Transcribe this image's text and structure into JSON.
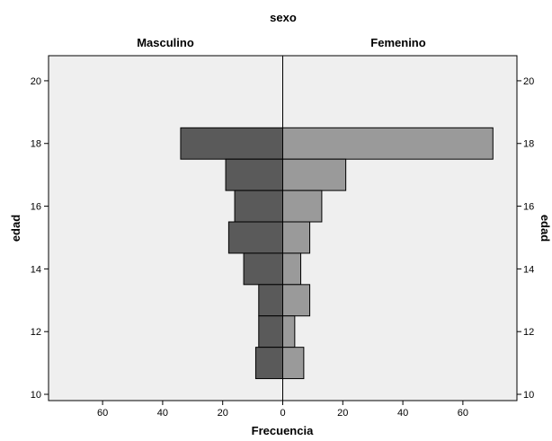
{
  "chart_data": {
    "type": "bar",
    "orientation": "population-pyramid",
    "title": "sexo",
    "xlabel": "Frecuencia",
    "ylabel": "edad",
    "ylabel_right": "edad",
    "xlim": [
      -78,
      78
    ],
    "ylim": [
      9.8,
      20.8
    ],
    "x_ticks": [
      60,
      40,
      20,
      0,
      20,
      40,
      60
    ],
    "x_tick_values": [
      -60,
      -40,
      -20,
      0,
      20,
      40,
      60
    ],
    "y_ticks": [
      "20",
      "18",
      "16",
      "14",
      "12",
      "10"
    ],
    "y_tick_values": [
      20,
      18,
      16,
      14,
      12,
      10
    ],
    "grid": false,
    "background_color": "#efefef",
    "series": [
      {
        "name": "Masculino",
        "color": "#5a5a5a",
        "side": "left",
        "ages": [
          18,
          17,
          16,
          15,
          14,
          13,
          12,
          11
        ],
        "values": [
          34,
          19,
          16,
          18,
          13,
          8,
          8,
          9
        ]
      },
      {
        "name": "Femenino",
        "color": "#9a9a9a",
        "side": "right",
        "ages": [
          18,
          17,
          16,
          15,
          14,
          13,
          12,
          11
        ],
        "values": [
          70,
          21,
          13,
          9,
          6,
          9,
          4,
          7
        ]
      }
    ]
  }
}
